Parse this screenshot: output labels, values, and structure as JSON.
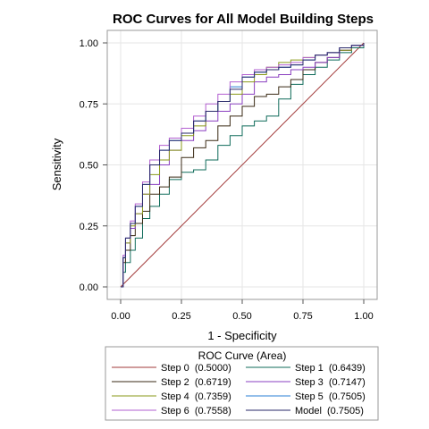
{
  "chart_data": {
    "type": "line",
    "title": "ROC Curves for All Model Building Steps",
    "xlabel": "1 - Specificity",
    "ylabel": "Sensitivity",
    "xlim": [
      -0.05,
      1.05
    ],
    "ylim": [
      -0.05,
      1.05
    ],
    "xticks": [
      "0.00",
      "0.25",
      "0.50",
      "0.75",
      "1.00"
    ],
    "yticks": [
      "0.00",
      "0.25",
      "0.50",
      "0.75",
      "1.00"
    ],
    "grid": true,
    "legend": {
      "title": "ROC Curve (Area)",
      "placement": "bottom",
      "columns": 2
    },
    "series": [
      {
        "name": "Step 0",
        "area_label": "(0.5000)",
        "color": "#a23a3a",
        "x": [
          0,
          1
        ],
        "y": [
          0,
          1
        ]
      },
      {
        "name": "Step 1",
        "area_label": "(0.6439)",
        "color": "#0f6b5a",
        "x": [
          0,
          0.01,
          0.02,
          0.04,
          0.06,
          0.09,
          0.12,
          0.16,
          0.2,
          0.25,
          0.3,
          0.35,
          0.4,
          0.45,
          0.5,
          0.55,
          0.6,
          0.65,
          0.7,
          0.75,
          0.8,
          0.85,
          0.9,
          0.95,
          1
        ],
        "y": [
          0,
          0.06,
          0.1,
          0.15,
          0.2,
          0.28,
          0.33,
          0.38,
          0.44,
          0.47,
          0.48,
          0.52,
          0.58,
          0.62,
          0.66,
          0.68,
          0.7,
          0.77,
          0.83,
          0.87,
          0.9,
          0.93,
          0.96,
          0.98,
          1
        ]
      },
      {
        "name": "Step 2",
        "area_label": "(0.6719)",
        "color": "#3a2a14",
        "x": [
          0,
          0.01,
          0.02,
          0.04,
          0.06,
          0.09,
          0.12,
          0.16,
          0.2,
          0.25,
          0.3,
          0.35,
          0.4,
          0.45,
          0.5,
          0.55,
          0.6,
          0.65,
          0.7,
          0.75,
          0.8,
          0.85,
          0.9,
          0.95,
          1
        ],
        "y": [
          0,
          0.1,
          0.15,
          0.21,
          0.26,
          0.31,
          0.38,
          0.41,
          0.45,
          0.53,
          0.57,
          0.6,
          0.66,
          0.7,
          0.74,
          0.78,
          0.79,
          0.82,
          0.85,
          0.89,
          0.92,
          0.94,
          0.97,
          0.99,
          1
        ]
      },
      {
        "name": "Step 3",
        "area_label": "(0.7147)",
        "color": "#8a3fc0",
        "x": [
          0,
          0.01,
          0.02,
          0.04,
          0.06,
          0.09,
          0.12,
          0.16,
          0.2,
          0.25,
          0.3,
          0.35,
          0.4,
          0.45,
          0.5,
          0.55,
          0.6,
          0.65,
          0.7,
          0.75,
          0.8,
          0.85,
          0.9,
          0.95,
          1
        ],
        "y": [
          0,
          0.12,
          0.18,
          0.24,
          0.3,
          0.38,
          0.42,
          0.5,
          0.56,
          0.6,
          0.64,
          0.68,
          0.72,
          0.75,
          0.79,
          0.84,
          0.86,
          0.87,
          0.89,
          0.9,
          0.92,
          0.94,
          0.97,
          0.99,
          1
        ]
      },
      {
        "name": "Step 4",
        "area_label": "(0.7359)",
        "color": "#8a9a1a",
        "x": [
          0,
          0.01,
          0.02,
          0.04,
          0.06,
          0.09,
          0.12,
          0.16,
          0.2,
          0.25,
          0.3,
          0.35,
          0.4,
          0.45,
          0.5,
          0.55,
          0.6,
          0.65,
          0.7,
          0.75,
          0.8,
          0.85,
          0.9,
          0.95,
          1
        ],
        "y": [
          0,
          0.12,
          0.18,
          0.25,
          0.3,
          0.38,
          0.46,
          0.52,
          0.56,
          0.62,
          0.66,
          0.72,
          0.76,
          0.79,
          0.84,
          0.87,
          0.9,
          0.92,
          0.93,
          0.94,
          0.95,
          0.96,
          0.97,
          0.99,
          1
        ]
      },
      {
        "name": "Step 5",
        "area_label": "(0.7505)",
        "color": "#2a7fd4",
        "x": [
          0,
          0.01,
          0.02,
          0.04,
          0.06,
          0.09,
          0.12,
          0.16,
          0.2,
          0.25,
          0.3,
          0.35,
          0.4,
          0.45,
          0.5,
          0.55,
          0.6,
          0.65,
          0.7,
          0.75,
          0.8,
          0.85,
          0.9,
          0.95,
          1
        ],
        "y": [
          0,
          0.12,
          0.2,
          0.26,
          0.33,
          0.42,
          0.5,
          0.56,
          0.6,
          0.63,
          0.68,
          0.72,
          0.76,
          0.82,
          0.86,
          0.88,
          0.89,
          0.9,
          0.91,
          0.93,
          0.95,
          0.96,
          0.98,
          0.99,
          1
        ]
      },
      {
        "name": "Step 6",
        "area_label": "(0.7558)",
        "color": "#b25fd0",
        "x": [
          0,
          0.01,
          0.02,
          0.04,
          0.06,
          0.09,
          0.12,
          0.16,
          0.2,
          0.25,
          0.3,
          0.35,
          0.4,
          0.45,
          0.5,
          0.55,
          0.6,
          0.65,
          0.7,
          0.75,
          0.8,
          0.85,
          0.9,
          0.95,
          1
        ],
        "y": [
          0,
          0.13,
          0.2,
          0.27,
          0.34,
          0.43,
          0.52,
          0.58,
          0.61,
          0.65,
          0.7,
          0.75,
          0.79,
          0.84,
          0.87,
          0.89,
          0.9,
          0.91,
          0.92,
          0.94,
          0.95,
          0.96,
          0.98,
          0.99,
          1
        ]
      },
      {
        "name": "Model",
        "area_label": "(0.7505)",
        "color": "#2a2a6a",
        "x": [
          0,
          0.01,
          0.02,
          0.04,
          0.06,
          0.09,
          0.12,
          0.16,
          0.2,
          0.25,
          0.3,
          0.35,
          0.4,
          0.45,
          0.5,
          0.55,
          0.6,
          0.65,
          0.7,
          0.75,
          0.8,
          0.85,
          0.9,
          0.95,
          1
        ],
        "y": [
          0,
          0.12,
          0.2,
          0.26,
          0.33,
          0.42,
          0.5,
          0.56,
          0.6,
          0.63,
          0.68,
          0.72,
          0.76,
          0.81,
          0.86,
          0.88,
          0.89,
          0.9,
          0.91,
          0.93,
          0.95,
          0.96,
          0.98,
          0.99,
          1
        ]
      }
    ]
  }
}
